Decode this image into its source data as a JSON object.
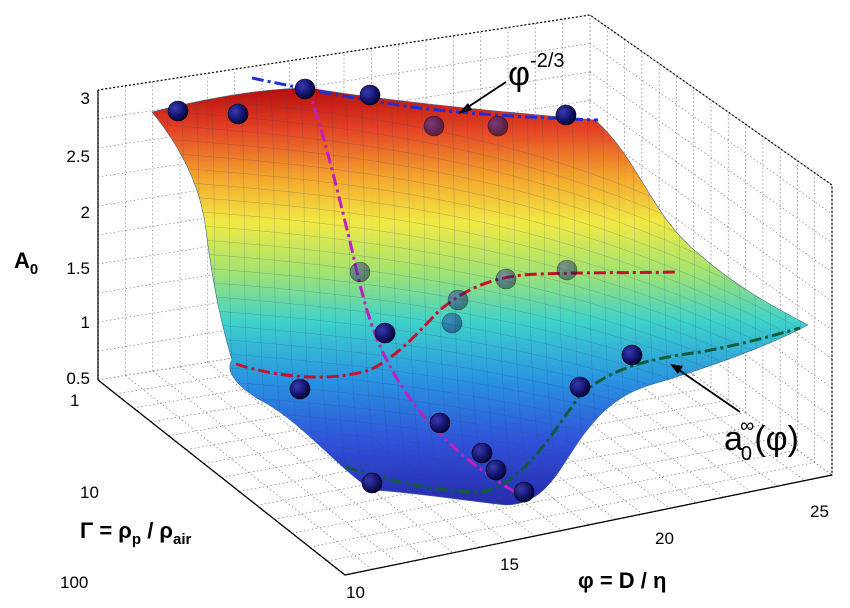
{
  "chart_data": {
    "type": "surface",
    "axes": {
      "z": {
        "label": "A",
        "label_sub": "0",
        "ticks": [
          "0.5",
          "1",
          "1.5",
          "2",
          "2.5",
          "3"
        ],
        "range": [
          0.5,
          3
        ]
      },
      "y": {
        "label_main": "Γ = ρ",
        "label_sub1": "p",
        "label_mid": " / ρ",
        "label_sub2": "air",
        "ticks": [
          "1",
          "10",
          "100"
        ],
        "scale": "log",
        "range": [
          1,
          100
        ]
      },
      "x": {
        "label": "φ = D / η",
        "ticks": [
          "10",
          "15",
          "20",
          "25"
        ],
        "range": [
          10,
          25
        ]
      }
    },
    "annotations": {
      "top_curve": {
        "base": "φ",
        "exponent": "-2/3"
      },
      "bottom_curve": {
        "base": "a",
        "sub": "0",
        "sup": "∞",
        "arg": "(φ)"
      }
    },
    "colormap": "jet",
    "grid": true,
    "curves": [
      {
        "color": "#1f2fd0",
        "style": "dash-dot",
        "role": "upper ridge"
      },
      {
        "color": "#c8102e",
        "style": "dash-dot",
        "role": "middle"
      },
      {
        "color": "#0f5c3a",
        "style": "dash-dot",
        "role": "lower"
      },
      {
        "color": "#c01fc0",
        "style": "dash-dot",
        "role": "cross"
      }
    ]
  }
}
